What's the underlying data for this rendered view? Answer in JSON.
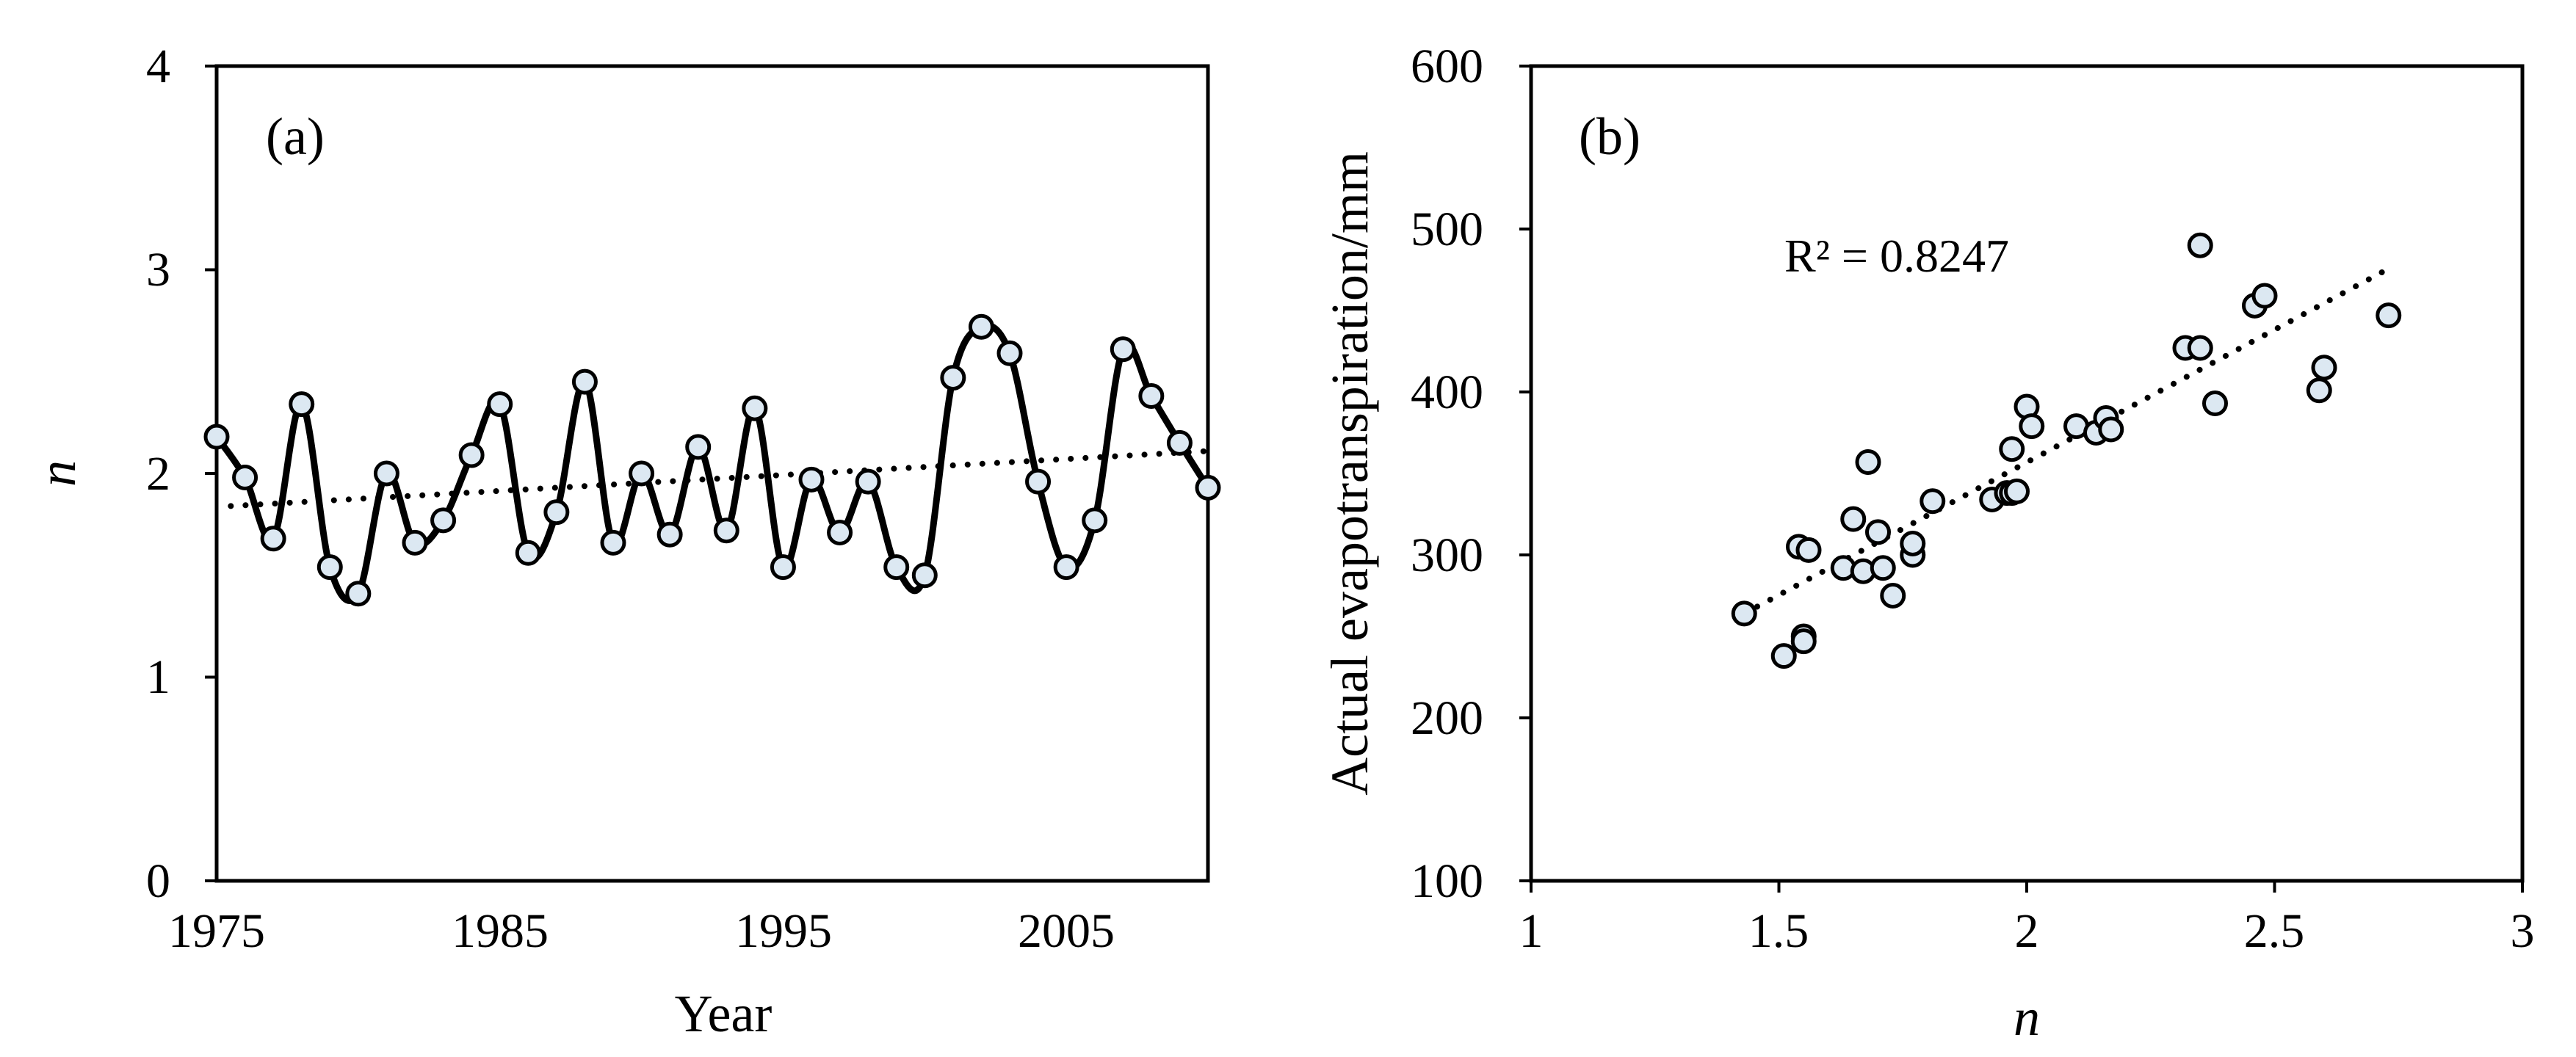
{
  "chart_data": [
    {
      "type": "line",
      "panel_label": "(a)",
      "xlabel": "Year",
      "ylabel": "n",
      "xlim": [
        1975,
        2010
      ],
      "ylim": [
        0,
        4
      ],
      "x_ticks": [
        "1975",
        "1985",
        "1995",
        "2005"
      ],
      "y_ticks": [
        "0",
        "1",
        "2",
        "3",
        "4"
      ],
      "grid": false,
      "series": [
        {
          "marker": "circle",
          "x": [
            1975,
            1976,
            1977,
            1978,
            1979,
            1980,
            1981,
            1982,
            1983,
            1984,
            1985,
            1986,
            1987,
            1988,
            1989,
            1990,
            1991,
            1992,
            1993,
            1994,
            1995,
            1996,
            1997,
            1998,
            1999,
            2000,
            2001,
            2002,
            2003,
            2004,
            2005,
            2006,
            2007,
            2008,
            2009,
            2010
          ],
          "y": [
            2.18,
            1.98,
            1.68,
            2.34,
            1.54,
            1.41,
            2.0,
            1.66,
            1.77,
            2.09,
            2.34,
            1.61,
            1.81,
            2.45,
            1.66,
            2.0,
            1.7,
            2.13,
            1.72,
            2.32,
            1.54,
            1.97,
            1.71,
            1.96,
            1.54,
            1.5,
            2.47,
            2.72,
            2.59,
            1.96,
            1.54,
            1.77,
            2.61,
            2.38,
            2.15,
            1.93
          ]
        }
      ],
      "trendline": {
        "style": "dotted",
        "x": [
          1975.5,
          2010
        ],
        "y": [
          1.84,
          2.11
        ]
      }
    },
    {
      "type": "scatter",
      "panel_label": "(b)",
      "xlabel": "n",
      "ylabel": "Actual evapotranspiration/mm",
      "xlim": [
        1,
        3
      ],
      "ylim": [
        100,
        600
      ],
      "x_ticks": [
        "1",
        "1.5",
        "2",
        "2.5",
        "3"
      ],
      "y_ticks": [
        "100",
        "200",
        "300",
        "400",
        "500",
        "600"
      ],
      "grid": false,
      "annotation": "R² = 0.8247",
      "series": [
        {
          "marker": "circle",
          "points": [
            [
              1.43,
              264
            ],
            [
              1.51,
              238
            ],
            [
              1.54,
              305
            ],
            [
              1.55,
              250
            ],
            [
              1.55,
              247
            ],
            [
              1.56,
              303
            ],
            [
              1.63,
              292
            ],
            [
              1.65,
              322
            ],
            [
              1.67,
              290
            ],
            [
              1.68,
              357
            ],
            [
              1.7,
              314
            ],
            [
              1.71,
              292
            ],
            [
              1.73,
              275
            ],
            [
              1.77,
              300
            ],
            [
              1.77,
              307
            ],
            [
              1.81,
              333
            ],
            [
              1.93,
              334
            ],
            [
              1.96,
              338
            ],
            [
              1.97,
              365
            ],
            [
              1.97,
              338
            ],
            [
              1.98,
              339
            ],
            [
              2.0,
              391
            ],
            [
              2.01,
              379
            ],
            [
              2.1,
              379
            ],
            [
              2.14,
              375
            ],
            [
              2.16,
              384
            ],
            [
              2.17,
              377
            ],
            [
              2.32,
              427
            ],
            [
              2.35,
              427
            ],
            [
              2.35,
              490
            ],
            [
              2.38,
              393
            ],
            [
              2.46,
              453
            ],
            [
              2.48,
              459
            ],
            [
              2.59,
              401
            ],
            [
              2.6,
              415
            ],
            [
              2.73,
              447
            ]
          ]
        }
      ],
      "trendline": {
        "style": "dotted",
        "x": [
          1.43,
          2.72
        ],
        "y": [
          264,
          474
        ]
      }
    }
  ]
}
